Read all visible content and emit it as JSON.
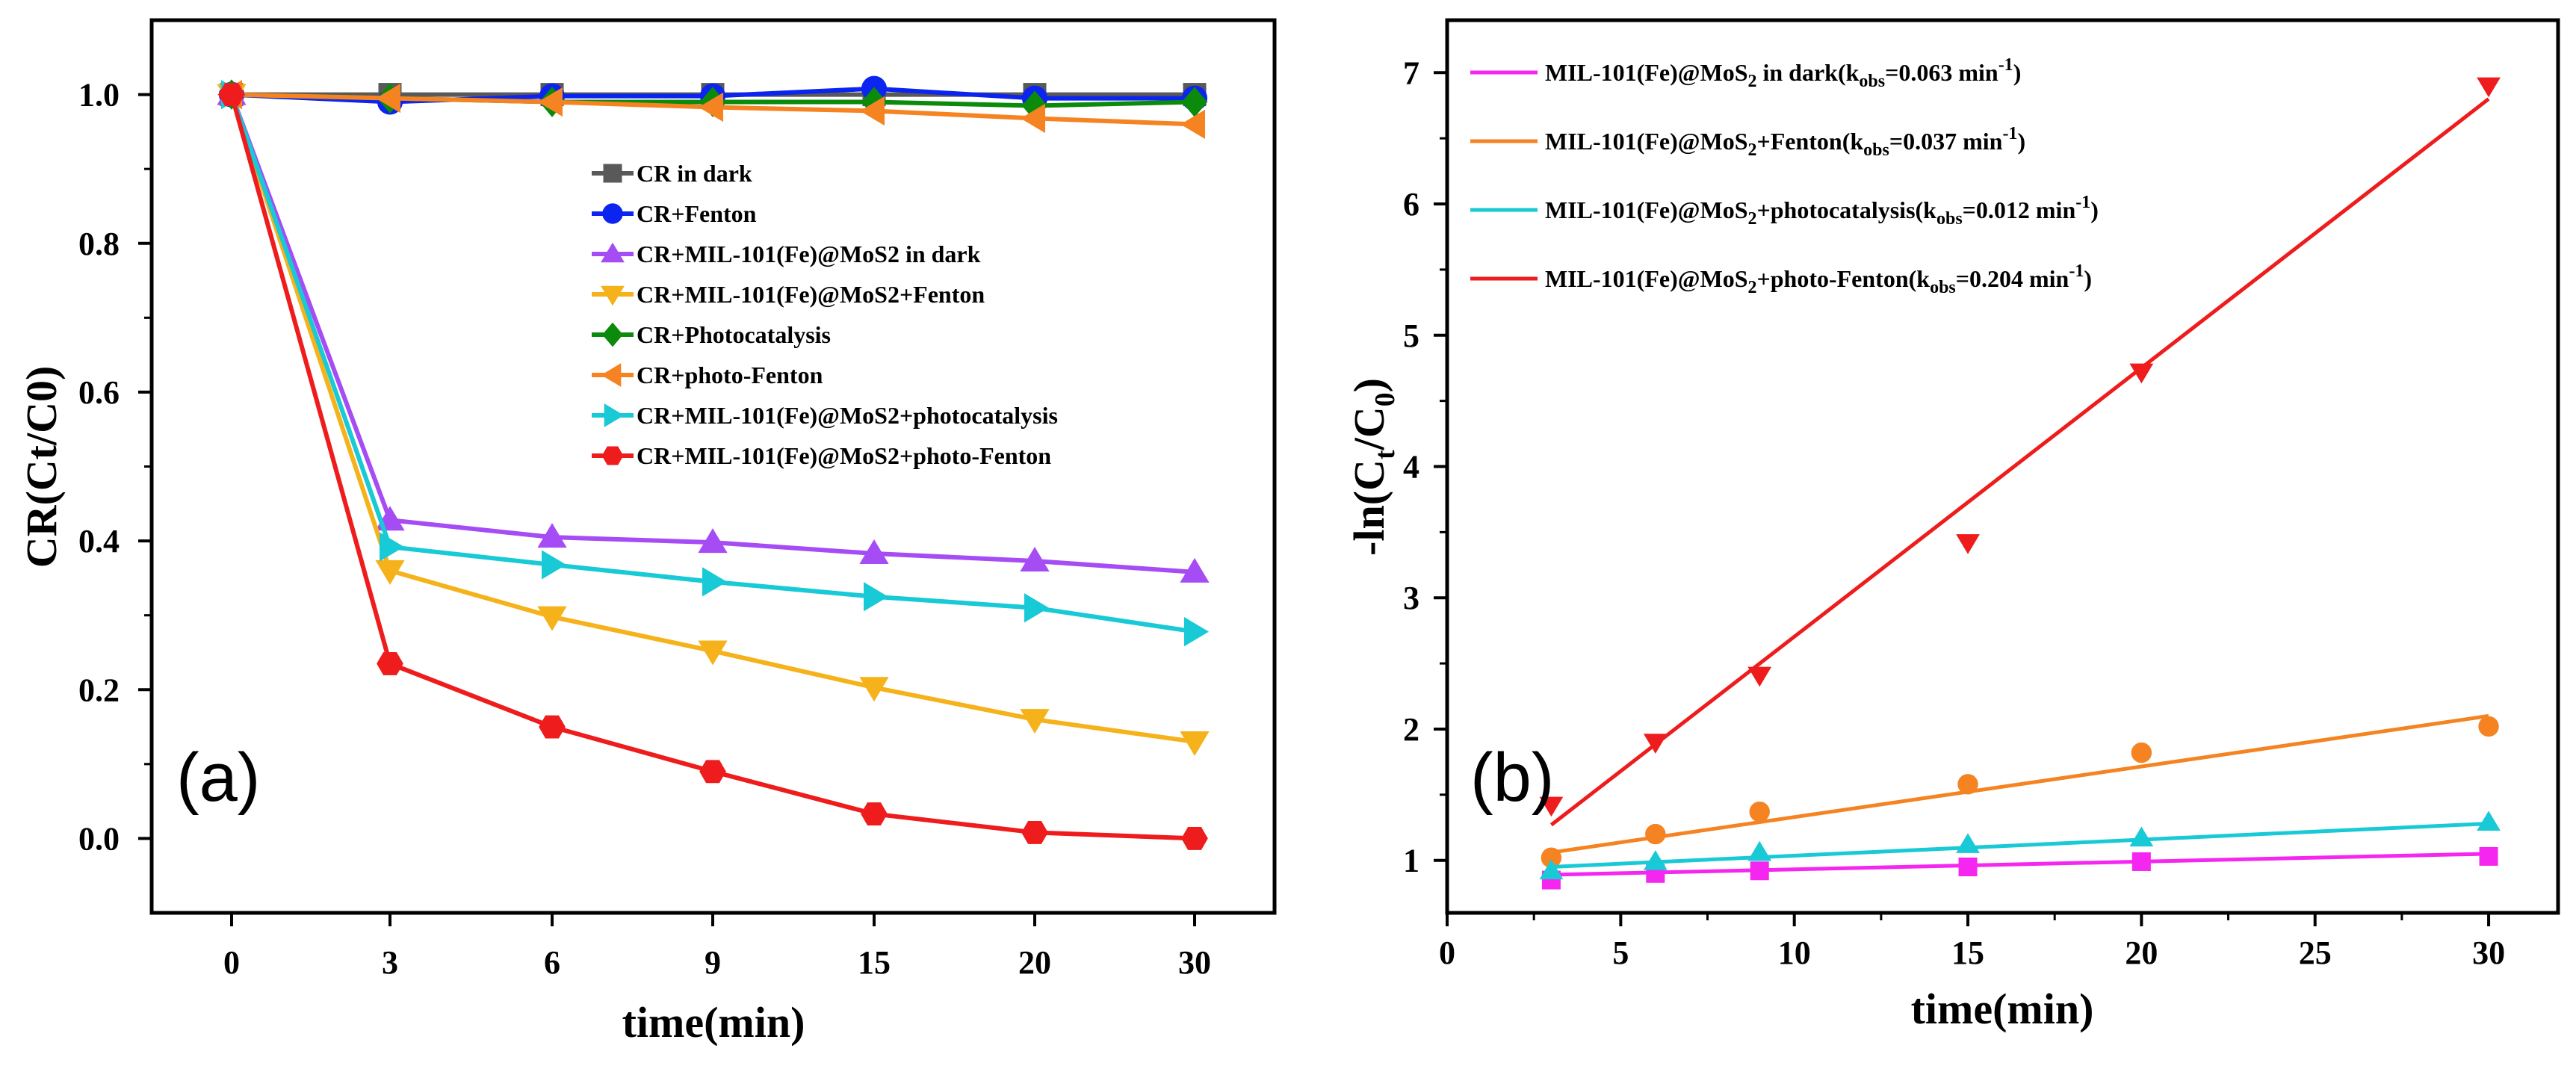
{
  "colors": {
    "dark": "#595959",
    "blue": "#0b24f0",
    "purple": "#a64cf5",
    "gold": "#f5b21a",
    "green": "#0b8a0b",
    "orange": "#f58322",
    "cyan": "#18c9d6",
    "red": "#ee1c1c",
    "magenta": "#f526f0"
  },
  "chart_data": [
    {
      "type": "line",
      "panel_label": "(a)",
      "xlabel": "time(min)",
      "ylabel": "CR(Ct/C0)",
      "x_categories": [
        "0",
        "3",
        "6",
        "9",
        "15",
        "20",
        "30"
      ],
      "x": [
        0,
        3,
        6,
        9,
        15,
        20,
        30
      ],
      "ylim": [
        -0.1,
        1.1
      ],
      "yticks": [
        "0.0",
        "0.2",
        "0.4",
        "0.6",
        "0.8",
        "1.0"
      ],
      "series": [
        {
          "name": "CR in dark",
          "color": "dark",
          "marker": "square",
          "values": [
            1.0,
            1.0,
            1.0,
            1.0,
            1.0,
            1.0,
            1.0
          ]
        },
        {
          "name": "CR+Fenton",
          "color": "blue",
          "marker": "circle",
          "values": [
            1.0,
            0.99,
            0.998,
            0.998,
            1.008,
            0.995,
            0.995
          ]
        },
        {
          "name": "CR+MIL-101(Fe)@MoS2 in dark",
          "color": "purple",
          "marker": "triangle-up",
          "values": [
            1.0,
            0.428,
            0.405,
            0.398,
            0.383,
            0.373,
            0.358
          ]
        },
        {
          "name": "CR+MIL-101(Fe)@MoS2+Fenton",
          "color": "gold",
          "marker": "triangle-down",
          "values": [
            1.0,
            0.36,
            0.298,
            0.252,
            0.203,
            0.16,
            0.13
          ]
        },
        {
          "name": "CR+Photocatalysis",
          "color": "green",
          "marker": "diamond",
          "values": [
            1.0,
            0.995,
            0.99,
            0.99,
            0.99,
            0.985,
            0.99
          ]
        },
        {
          "name": "CR+photo-Fenton",
          "color": "orange",
          "marker": "triangle-left",
          "values": [
            1.0,
            0.995,
            0.99,
            0.983,
            0.978,
            0.968,
            0.96
          ]
        },
        {
          "name": "CR+MIL-101(Fe)@MoS2+photocatalysis",
          "color": "cyan",
          "marker": "triangle-right",
          "values": [
            1.0,
            0.392,
            0.368,
            0.345,
            0.325,
            0.31,
            0.278
          ]
        },
        {
          "name": "CR+MIL-101(Fe)@MoS2+photo-Fenton",
          "color": "red",
          "marker": "hexagon",
          "values": [
            1.0,
            0.235,
            0.15,
            0.09,
            0.033,
            0.008,
            0.0
          ]
        }
      ]
    },
    {
      "type": "scatter",
      "panel_label": "(b)",
      "xlabel": "time(min)",
      "ylabel": "-ln(Ct/C0)",
      "xlim": [
        0,
        32
      ],
      "ylim": [
        0.6,
        7.4
      ],
      "xticks": [
        "0",
        "5",
        "10",
        "15",
        "20",
        "25",
        "30"
      ],
      "yticks": [
        "1",
        "2",
        "3",
        "4",
        "5",
        "6",
        "7"
      ],
      "x": [
        3,
        6,
        9,
        15,
        20,
        30
      ],
      "series": [
        {
          "name": "MIL-101(Fe)@MoS2 in dark",
          "k_obs": "0.063",
          "color": "magenta",
          "marker": "square",
          "values": [
            0.85,
            0.9,
            0.92,
            0.95,
            0.99,
            1.03
          ],
          "fit": [
            [
              3,
              0.89
            ],
            [
              30,
              1.05
            ]
          ]
        },
        {
          "name": "MIL-101(Fe)@MoS2+Fenton",
          "k_obs": "0.037",
          "color": "orange",
          "marker": "circle",
          "values": [
            1.02,
            1.2,
            1.37,
            1.58,
            1.82,
            2.02
          ],
          "fit": [
            [
              3,
              1.06
            ],
            [
              30,
              2.1
            ]
          ]
        },
        {
          "name": "MIL-101(Fe)@MoS2+photocatalysis",
          "k_obs": "0.012",
          "color": "cyan",
          "marker": "triangle-up",
          "values": [
            0.92,
            0.99,
            1.06,
            1.12,
            1.17,
            1.29
          ],
          "fit": [
            [
              3,
              0.95
            ],
            [
              30,
              1.28
            ]
          ]
        },
        {
          "name": "MIL-101(Fe)@MoS2+photo-Fenton",
          "k_obs": "0.204",
          "color": "red",
          "marker": "triangle-down",
          "values": [
            1.42,
            1.9,
            2.41,
            3.42,
            4.72,
            6.9
          ],
          "fit": [
            [
              3,
              1.27
            ],
            [
              30,
              6.8
            ]
          ]
        }
      ]
    }
  ]
}
